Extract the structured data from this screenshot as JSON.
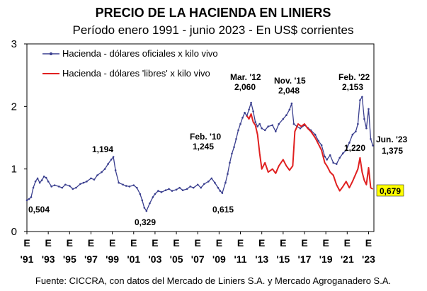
{
  "chart_data": {
    "type": "line",
    "title": "PRECIO DE LA HACIENDA EN LINIERS",
    "subtitle": "Período enero 1991 - junio 2023 - En US$ corrientes",
    "xlabel": "",
    "ylabel": "",
    "ylim": [
      0,
      3
    ],
    "xlim": [
      1991,
      2023.5
    ],
    "y_ticks": [
      "0",
      "1",
      "2",
      "3"
    ],
    "x_ticks": [
      {
        "top": "E",
        "bottom": "'91",
        "year": 1991
      },
      {
        "top": "E",
        "bottom": "'93",
        "year": 1993
      },
      {
        "top": "E",
        "bottom": "'95",
        "year": 1995
      },
      {
        "top": "E",
        "bottom": "'97",
        "year": 1997
      },
      {
        "top": "E",
        "bottom": "'99",
        "year": 1999
      },
      {
        "top": "E",
        "bottom": "'01",
        "year": 2001
      },
      {
        "top": "E",
        "bottom": "'03",
        "year": 2003
      },
      {
        "top": "E",
        "bottom": "'05",
        "year": 2005
      },
      {
        "top": "E",
        "bottom": "'07",
        "year": 2007
      },
      {
        "top": "E",
        "bottom": "'09",
        "year": 2009
      },
      {
        "top": "E",
        "bottom": "'11",
        "year": 2011
      },
      {
        "top": "E",
        "bottom": "'13",
        "year": 2013
      },
      {
        "top": "E",
        "bottom": "'15",
        "year": 2015
      },
      {
        "top": "E",
        "bottom": "'17",
        "year": 2017
      },
      {
        "top": "E",
        "bottom": "'19",
        "year": 2019
      },
      {
        "top": "E",
        "bottom": "'21",
        "year": 2021
      },
      {
        "top": "E",
        "bottom": "'23",
        "year": 2023
      }
    ],
    "series": [
      {
        "name": "Hacienda - dólares oficiales x kilo vivo",
        "color": "#3a3f8f",
        "x": [
          1991.0,
          1991.2,
          1991.4,
          1991.6,
          1991.8,
          1992.0,
          1992.2,
          1992.4,
          1992.6,
          1992.8,
          1993.0,
          1993.3,
          1993.6,
          1994.0,
          1994.3,
          1994.6,
          1995.0,
          1995.3,
          1995.6,
          1996.0,
          1996.3,
          1996.6,
          1997.0,
          1997.3,
          1997.6,
          1998.0,
          1998.3,
          1998.6,
          1998.9,
          1999.1,
          1999.3,
          1999.6,
          2000.0,
          2000.3,
          2000.6,
          2001.0,
          2001.3,
          2001.6,
          2001.8,
          2002.0,
          2002.2,
          2002.5,
          2002.8,
          2003.0,
          2003.3,
          2003.6,
          2004.0,
          2004.3,
          2004.6,
          2005.0,
          2005.3,
          2005.6,
          2006.0,
          2006.3,
          2006.6,
          2007.0,
          2007.3,
          2007.6,
          2008.0,
          2008.3,
          2008.6,
          2008.9,
          2009.1,
          2009.3,
          2009.6,
          2009.8,
          2010.0,
          2010.2,
          2010.4,
          2010.6,
          2010.8,
          2011.0,
          2011.2,
          2011.4,
          2011.6,
          2011.8,
          2012.0,
          2012.2,
          2012.4,
          2012.6,
          2012.8,
          2013.0,
          2013.3,
          2013.6,
          2014.0,
          2014.3,
          2014.6,
          2015.0,
          2015.3,
          2015.6,
          2015.8,
          2016.0,
          2016.3,
          2016.6,
          2017.0,
          2017.3,
          2017.6,
          2018.0,
          2018.3,
          2018.6,
          2018.9,
          2019.1,
          2019.4,
          2019.7,
          2020.0,
          2020.3,
          2020.6,
          2020.9,
          2021.2,
          2021.5,
          2021.8,
          2022.0,
          2022.2,
          2022.4,
          2022.6,
          2022.8,
          2023.0,
          2023.2,
          2023.4
        ],
        "values": [
          0.5,
          0.52,
          0.55,
          0.7,
          0.8,
          0.85,
          0.78,
          0.82,
          0.88,
          0.86,
          0.8,
          0.72,
          0.74,
          0.72,
          0.7,
          0.75,
          0.73,
          0.68,
          0.7,
          0.76,
          0.78,
          0.8,
          0.85,
          0.83,
          0.9,
          0.95,
          1.0,
          1.08,
          1.15,
          1.194,
          0.98,
          0.78,
          0.75,
          0.73,
          0.72,
          0.74,
          0.7,
          0.6,
          0.5,
          0.38,
          0.329,
          0.45,
          0.55,
          0.6,
          0.65,
          0.63,
          0.66,
          0.68,
          0.65,
          0.67,
          0.7,
          0.66,
          0.68,
          0.72,
          0.7,
          0.75,
          0.7,
          0.76,
          0.8,
          0.85,
          0.78,
          0.7,
          0.65,
          0.615,
          0.78,
          0.92,
          1.1,
          1.245,
          1.35,
          1.48,
          1.62,
          1.72,
          1.82,
          1.9,
          1.85,
          1.95,
          2.06,
          1.92,
          1.75,
          1.68,
          1.72,
          1.65,
          1.62,
          1.68,
          1.7,
          1.6,
          1.72,
          1.8,
          1.86,
          1.95,
          2.048,
          1.72,
          1.68,
          1.65,
          1.7,
          1.66,
          1.62,
          1.55,
          1.45,
          1.38,
          1.2,
          1.15,
          1.22,
          1.1,
          1.08,
          1.18,
          1.25,
          1.3,
          1.42,
          1.55,
          1.6,
          1.72,
          2.1,
          2.153,
          1.8,
          1.65,
          1.96,
          1.48,
          1.375
        ]
      },
      {
        "name": "Hacienda - dólares 'libres' x kilo vivo",
        "color": "#e02020",
        "x": [
          2011.6,
          2011.8,
          2012.0,
          2012.2,
          2012.4,
          2012.6,
          2012.8,
          2013.0,
          2013.3,
          2013.6,
          2014.0,
          2014.3,
          2014.6,
          2015.0,
          2015.3,
          2015.6,
          2015.9,
          2016.1,
          2016.4,
          2016.7,
          2017.0,
          2017.3,
          2017.6,
          2018.0,
          2018.3,
          2018.6,
          2018.9,
          2019.1,
          2019.4,
          2019.7,
          2020.0,
          2020.3,
          2020.6,
          2020.9,
          2021.2,
          2021.5,
          2021.8,
          2022.0,
          2022.2,
          2022.4,
          2022.6,
          2022.8,
          2023.0,
          2023.2,
          2023.4
        ],
        "values": [
          1.85,
          1.8,
          1.88,
          1.75,
          1.7,
          1.55,
          1.25,
          1.0,
          1.1,
          0.95,
          1.0,
          0.93,
          1.05,
          1.15,
          1.05,
          0.98,
          1.05,
          1.6,
          1.72,
          1.68,
          1.72,
          1.65,
          1.6,
          1.5,
          1.4,
          1.3,
          1.1,
          1.05,
          0.95,
          0.9,
          0.75,
          0.65,
          0.72,
          0.8,
          0.7,
          0.8,
          0.92,
          1.0,
          1.18,
          0.95,
          0.82,
          0.75,
          1.02,
          0.7,
          0.679
        ]
      }
    ],
    "annotations": [
      {
        "text": "0,504",
        "x": 1991.0,
        "y": 0.504
      },
      {
        "text": "1,194",
        "x": 1999.1,
        "y": 1.194
      },
      {
        "text": "0,329",
        "x": 2002.2,
        "y": 0.329
      },
      {
        "text": "0,615",
        "x": 2009.3,
        "y": 0.615
      },
      {
        "text": "Feb. '10",
        "x": 2010.2,
        "y": 1.245
      },
      {
        "text": "1,245",
        "x": 2010.2,
        "y": 1.245
      },
      {
        "text": "Mar. '12",
        "x": 2012.0,
        "y": 2.06
      },
      {
        "text": "2,060",
        "x": 2012.0,
        "y": 2.06
      },
      {
        "text": "Nov. '15",
        "x": 2015.8,
        "y": 2.048
      },
      {
        "text": "2,048",
        "x": 2015.8,
        "y": 2.048
      },
      {
        "text": "Feb. '22",
        "x": 2022.2,
        "y": 2.153
      },
      {
        "text": "2,153",
        "x": 2022.2,
        "y": 2.153
      },
      {
        "text": "1,220",
        "x": 2022.0,
        "y": 1.22
      },
      {
        "text": "Jun. '23",
        "x": 2023.4,
        "y": 1.375
      },
      {
        "text": "1,375",
        "x": 2023.4,
        "y": 1.375
      },
      {
        "text": "0,679",
        "x": 2023.4,
        "y": 0.679
      }
    ],
    "source": "Fuente: CICCRA, con datos del Mercado de Liniers S.A. y Mercado Agroganadero S.A."
  }
}
